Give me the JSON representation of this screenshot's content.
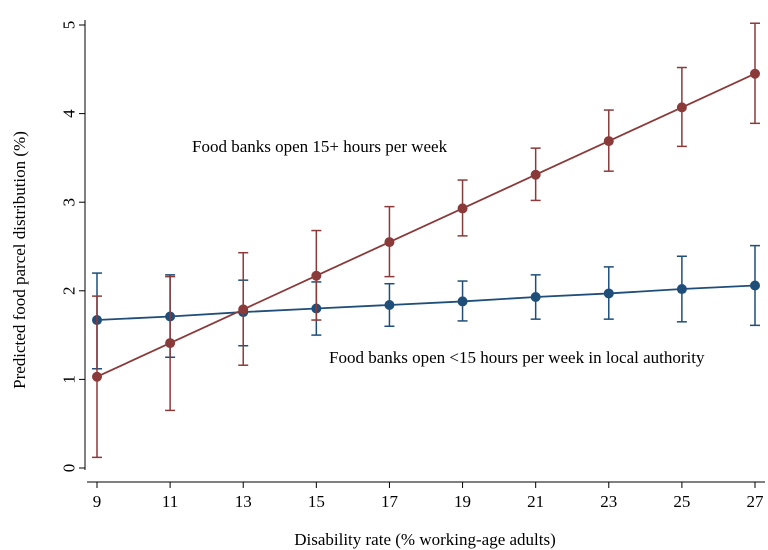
{
  "chart_data": {
    "type": "line",
    "title": "",
    "xlabel": "Disability rate (% working-age adults)",
    "ylabel": "Predicted food parcel distribution (%)",
    "x": [
      9,
      11,
      13,
      15,
      17,
      19,
      21,
      23,
      25,
      27
    ],
    "xticks": [
      "9",
      "11",
      "13",
      "15",
      "17",
      "19",
      "21",
      "23",
      "25",
      "27"
    ],
    "xlim": [
      9,
      27
    ],
    "yticks": [
      "0",
      "1",
      "2",
      "3",
      "4",
      "5"
    ],
    "ylim": [
      0,
      5
    ],
    "grid": false,
    "series": [
      {
        "name": "Food banks open <15 hours per week in local authority",
        "color": "#1f4e79",
        "values": [
          1.67,
          1.71,
          1.76,
          1.8,
          1.84,
          1.88,
          1.93,
          1.97,
          2.02,
          2.06
        ],
        "ci_low": [
          1.12,
          1.25,
          1.38,
          1.5,
          1.6,
          1.66,
          1.68,
          1.68,
          1.65,
          1.61
        ],
        "ci_high": [
          2.2,
          2.18,
          2.12,
          2.1,
          2.08,
          2.11,
          2.18,
          2.27,
          2.39,
          2.51
        ]
      },
      {
        "name": "Food banks open 15+ hours per week",
        "color": "#8b3a3a",
        "values": [
          1.03,
          1.41,
          1.79,
          2.17,
          2.55,
          2.93,
          3.31,
          3.69,
          4.07,
          4.45
        ],
        "ci_low": [
          0.12,
          0.65,
          1.16,
          1.67,
          2.16,
          2.62,
          3.02,
          3.35,
          3.63,
          3.89
        ],
        "ci_high": [
          1.94,
          2.16,
          2.43,
          2.68,
          2.95,
          3.25,
          3.61,
          4.04,
          4.52,
          5.02
        ]
      }
    ],
    "annotations": [
      "Food banks open 15+ hours per week",
      "Food banks open <15 hours per week in local authority"
    ]
  }
}
